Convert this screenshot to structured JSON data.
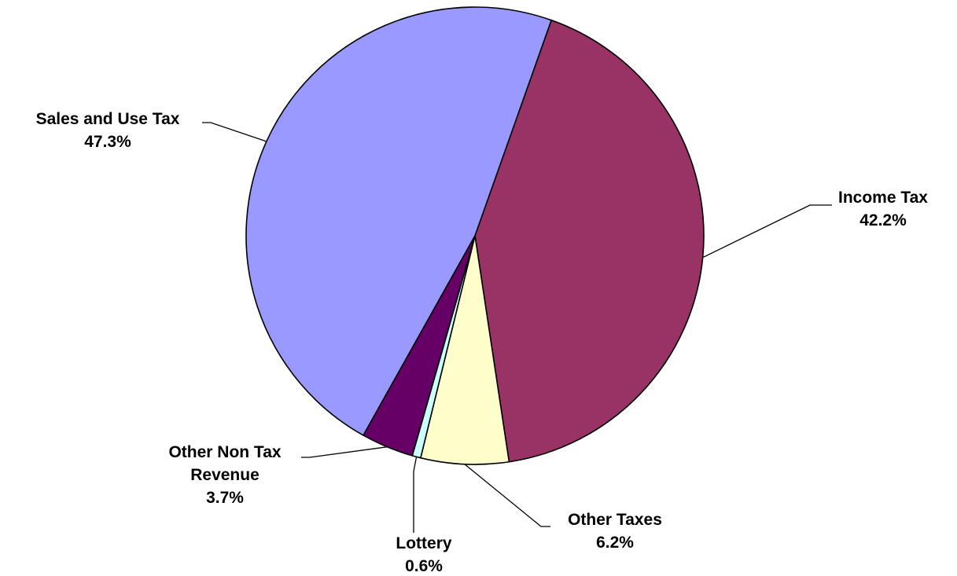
{
  "chart_data": {
    "type": "pie",
    "title": "",
    "start_angle_deg": 19.5,
    "direction": "clockwise",
    "slices": [
      {
        "label_lines": [
          "Income Tax"
        ],
        "pct_label": "42.2%",
        "value": 42.2,
        "color": "#993366"
      },
      {
        "label_lines": [
          "Other Taxes"
        ],
        "pct_label": "6.2%",
        "value": 6.2,
        "color": "#FFFFCC"
      },
      {
        "label_lines": [
          "Lottery"
        ],
        "pct_label": "0.6%",
        "value": 0.6,
        "color": "#CCFFFF"
      },
      {
        "label_lines": [
          "Other Non Tax",
          "Revenue"
        ],
        "pct_label": "3.7%",
        "value": 3.7,
        "color": "#660066"
      },
      {
        "label_lines": [
          "Sales and Use Tax"
        ],
        "pct_label": "47.3%",
        "value": 47.3,
        "color": "#9999FF"
      }
    ],
    "legend": "none",
    "data_labels": "outside with leader lines"
  }
}
